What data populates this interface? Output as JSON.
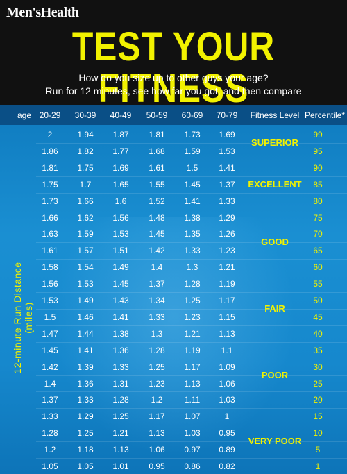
{
  "header": {
    "brand": "Men'sHealth",
    "title": "TEST YOUR FITNESS",
    "subtitle_line1": "How do you size up to other guys your age?",
    "subtitle_line2": "Run for 12 minutes, see how far you got, and then compare"
  },
  "colors": {
    "accent": "#f2f200",
    "header_bg": "#111111",
    "table_bg": "#1a8fd2",
    "header_row": "#0a4f86"
  },
  "table": {
    "columns": [
      "age",
      "20-29",
      "30-39",
      "40-49",
      "50-59",
      "60-69",
      "70-79",
      "Fitness Level",
      "Percentile*"
    ],
    "y_axis_label": "12-minute Run Distance (miles)",
    "rows": [
      [
        "2",
        "1.94",
        "1.87",
        "1.81",
        "1.73",
        "1.69",
        "99"
      ],
      [
        "1.86",
        "1.82",
        "1.77",
        "1.68",
        "1.59",
        "1.53",
        "95"
      ],
      [
        "1.81",
        "1.75",
        "1.69",
        "1.61",
        "1.5",
        "1.41",
        "90"
      ],
      [
        "1.75",
        "1.7",
        "1.65",
        "1.55",
        "1.45",
        "1.37",
        "85"
      ],
      [
        "1.73",
        "1.66",
        "1.6",
        "1.52",
        "1.41",
        "1.33",
        "80"
      ],
      [
        "1.66",
        "1.62",
        "1.56",
        "1.48",
        "1.38",
        "1.29",
        "75"
      ],
      [
        "1.63",
        "1.59",
        "1.53",
        "1.45",
        "1.35",
        "1.26",
        "70"
      ],
      [
        "1.61",
        "1.57",
        "1.51",
        "1.42",
        "1.33",
        "1.23",
        "65"
      ],
      [
        "1.58",
        "1.54",
        "1.49",
        "1.4",
        "1.3",
        "1.21",
        "60"
      ],
      [
        "1.56",
        "1.53",
        "1.45",
        "1.37",
        "1.28",
        "1.19",
        "55"
      ],
      [
        "1.53",
        "1.49",
        "1.43",
        "1.34",
        "1.25",
        "1.17",
        "50"
      ],
      [
        "1.5",
        "1.46",
        "1.41",
        "1.33",
        "1.23",
        "1.15",
        "45"
      ],
      [
        "1.47",
        "1.44",
        "1.38",
        "1.3",
        "1.21",
        "1.13",
        "40"
      ],
      [
        "1.45",
        "1.41",
        "1.36",
        "1.28",
        "1.19",
        "1.1",
        "35"
      ],
      [
        "1.42",
        "1.39",
        "1.33",
        "1.25",
        "1.17",
        "1.09",
        "30"
      ],
      [
        "1.4",
        "1.36",
        "1.31",
        "1.23",
        "1.13",
        "1.06",
        "25"
      ],
      [
        "1.37",
        "1.33",
        "1.28",
        "1.2",
        "1.11",
        "1.03",
        "20"
      ],
      [
        "1.33",
        "1.29",
        "1.25",
        "1.17",
        "1.07",
        "1",
        "15"
      ],
      [
        "1.28",
        "1.25",
        "1.21",
        "1.13",
        "1.03",
        "0.95",
        "10"
      ],
      [
        "1.2",
        "1.18",
        "1.13",
        "1.06",
        "0.97",
        "0.89",
        "5"
      ],
      [
        "1.05",
        "1.05",
        "1.01",
        "0.95",
        "0.86",
        "0.82",
        "1"
      ]
    ],
    "levels": [
      {
        "label": "SUPERIOR",
        "from": 0,
        "to": 1
      },
      {
        "label": "EXCELLENT",
        "from": 2,
        "to": 4
      },
      {
        "label": "GOOD",
        "from": 5,
        "to": 8
      },
      {
        "label": "FAIR",
        "from": 9,
        "to": 12
      },
      {
        "label": "POOR",
        "from": 13,
        "to": 16
      },
      {
        "label": "VERY POOR",
        "from": 17,
        "to": 20
      }
    ]
  }
}
